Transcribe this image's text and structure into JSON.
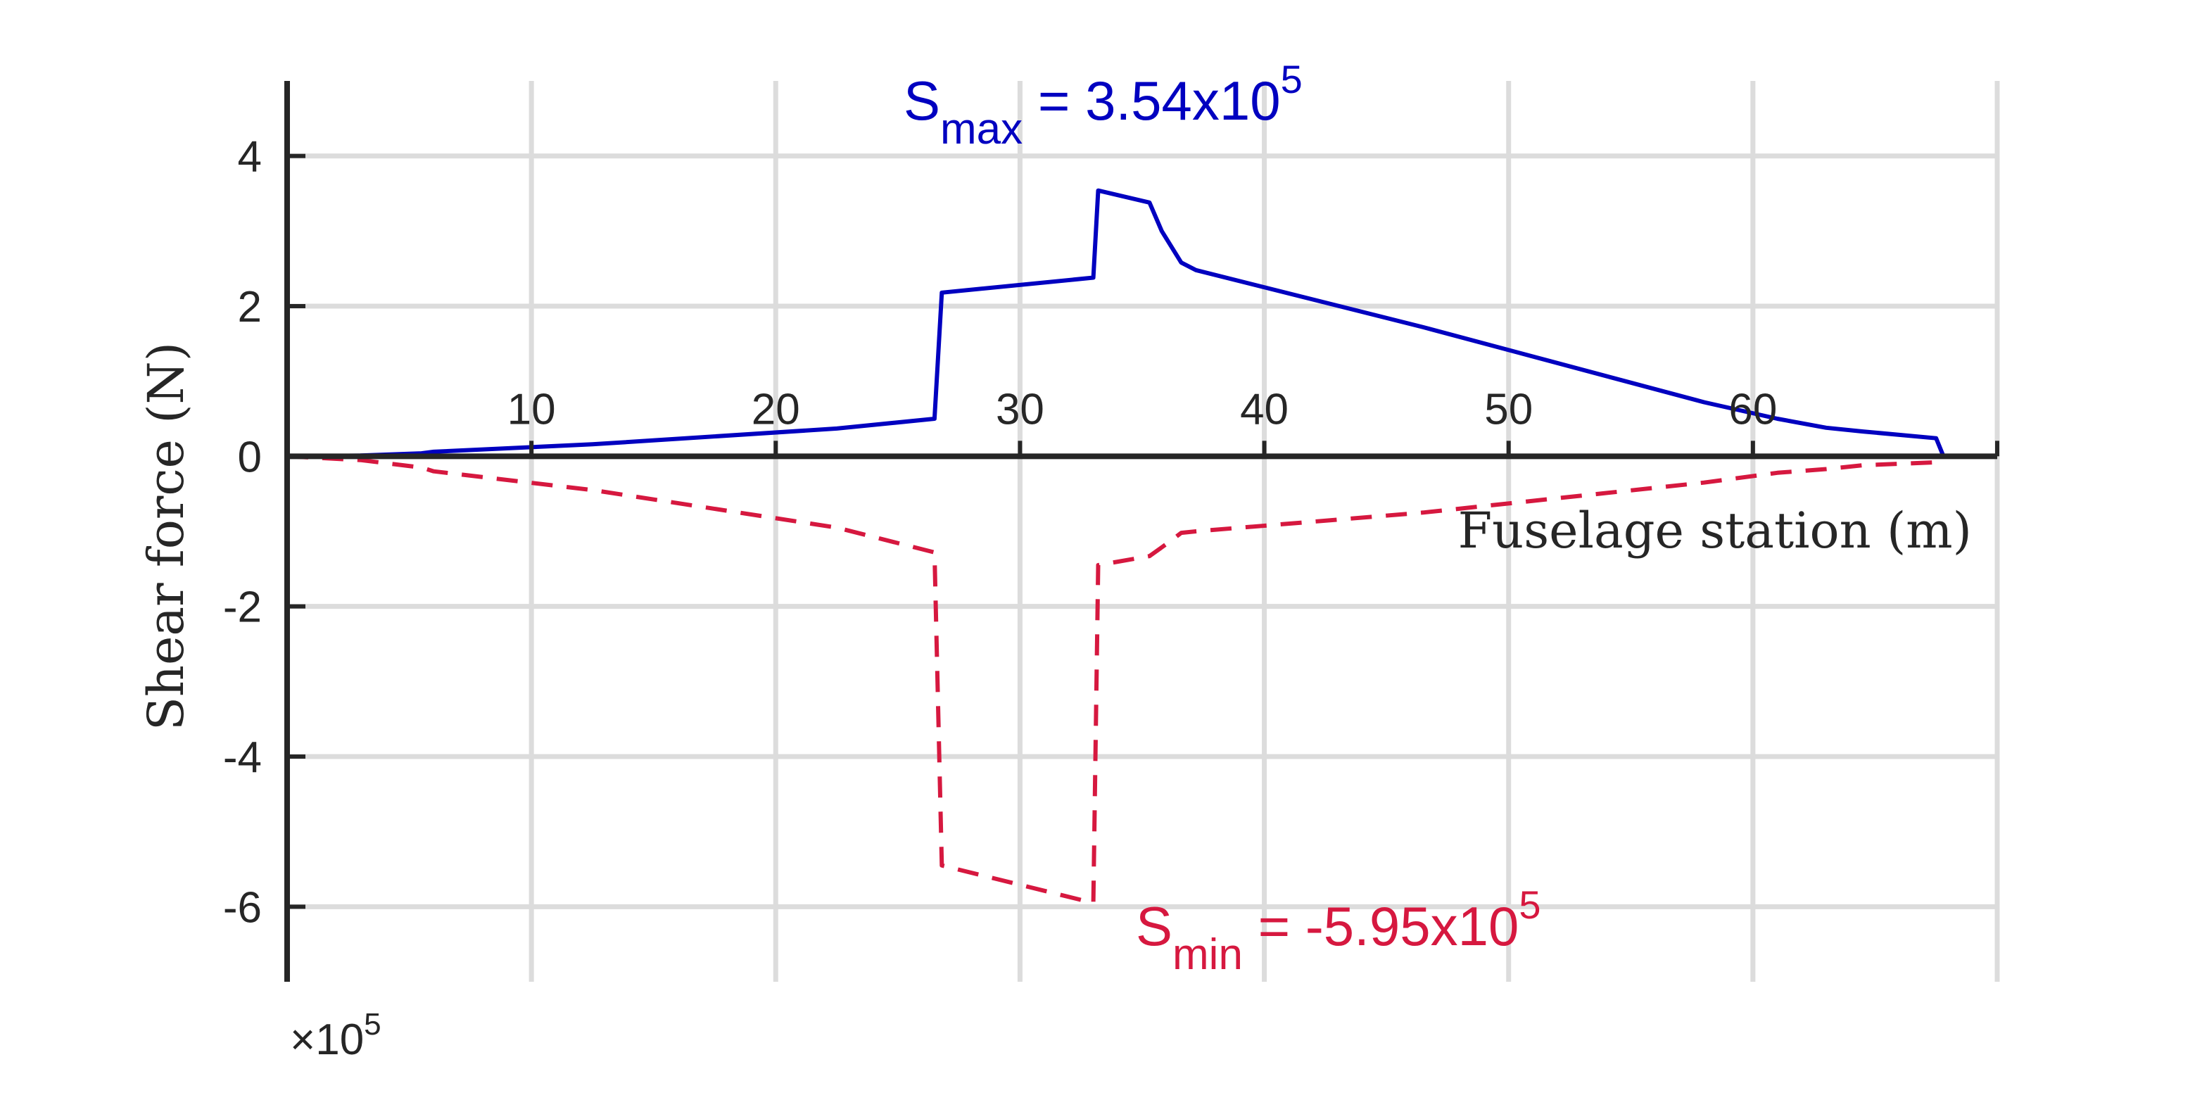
{
  "chart_data": {
    "type": "line",
    "xlabel": "Fuselage station (m)",
    "ylabel": "Shear force (N)",
    "y_multiplier": {
      "base": "×10",
      "exponent": "5"
    },
    "xlim": [
      0,
      70
    ],
    "ylim": [
      -7,
      5
    ],
    "x_ticks": [
      10,
      20,
      30,
      40,
      50,
      60
    ],
    "y_ticks": [
      4,
      2,
      0,
      -2,
      -4,
      -6
    ],
    "x_gridlines": [
      10,
      20,
      30,
      40,
      50,
      60,
      70
    ],
    "grid": true,
    "series": [
      {
        "line_style": "solid",
        "color": "#0000c0",
        "x": [
          0,
          3,
          5.5,
          6,
          12.5,
          22.5,
          26.5,
          26.8,
          33,
          33.2,
          35.3,
          35.8,
          36.6,
          37.2,
          46.5,
          58,
          61,
          63,
          64.5,
          67.5,
          67.8,
          69.5
        ],
        "y": [
          0,
          0.01,
          0.04,
          0.06,
          0.16,
          0.37,
          0.5,
          2.18,
          2.38,
          3.54,
          3.38,
          3.0,
          2.58,
          2.48,
          1.72,
          0.72,
          0.5,
          0.38,
          0.33,
          0.24,
          0,
          0
        ]
      },
      {
        "line_style": "dashed",
        "color": "#d6183f",
        "x": [
          0,
          3,
          5.5,
          6,
          12.5,
          22.5,
          26.5,
          26.8,
          33,
          33.2,
          35.3,
          36.2,
          36.6,
          37.2,
          46.5,
          58,
          61,
          63,
          64.5,
          67.5,
          67.8,
          69.5
        ],
        "y": [
          0,
          -0.05,
          -0.15,
          -0.2,
          -0.45,
          -0.95,
          -1.28,
          -5.45,
          -5.95,
          -1.45,
          -1.33,
          -1.12,
          -1.02,
          -1.0,
          -0.75,
          -0.35,
          -0.22,
          -0.17,
          -0.12,
          -0.08,
          0,
          0
        ]
      }
    ],
    "annotations": {
      "max": {
        "base": "S",
        "sub": "max",
        "mid": " = 3.54x10",
        "sup": "5",
        "color": "#0000c0"
      },
      "min": {
        "base": "S",
        "sub": "min",
        "mid": " = -5.95x10",
        "sup": "5",
        "color": "#d6183f"
      }
    }
  }
}
